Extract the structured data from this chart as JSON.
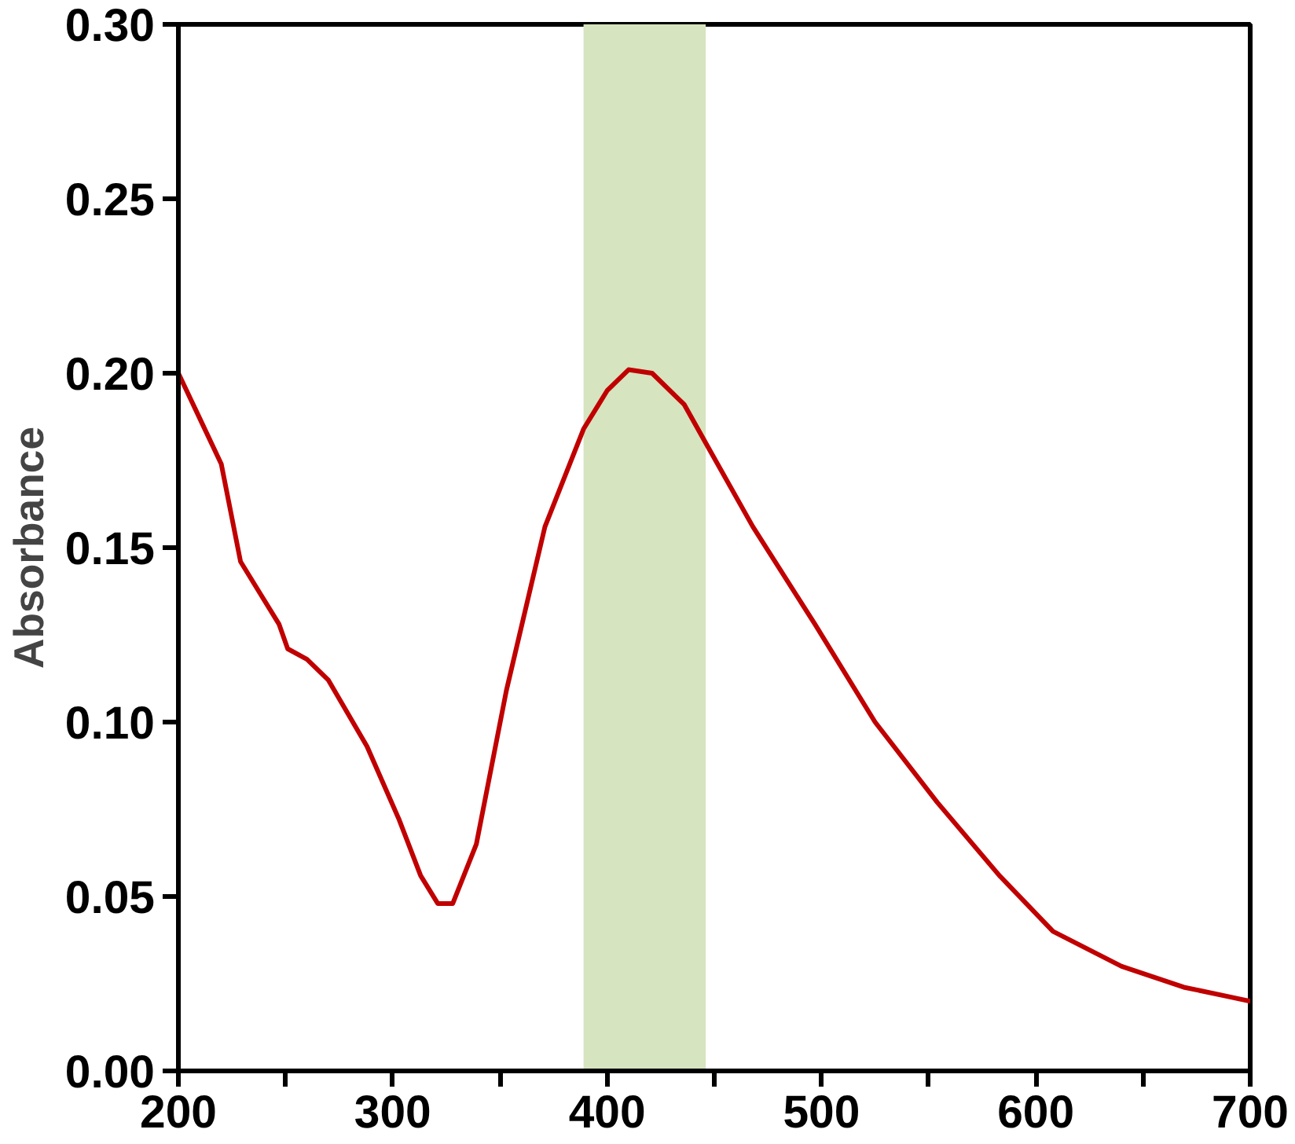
{
  "chart_data": {
    "type": "line",
    "ylabel": "Absorbance",
    "xlim": [
      200,
      700
    ],
    "ylim": [
      0,
      0.3
    ],
    "xticks": [
      200,
      {
        "value": 250,
        "label": null
      },
      300,
      {
        "value": 350,
        "label": null
      },
      400,
      {
        "value": 450,
        "label": null
      },
      500,
      {
        "value": 550,
        "label": null
      },
      600,
      {
        "value": 650,
        "label": null
      },
      700
    ],
    "yticks": [
      {
        "value": 0,
        "label": "0.00"
      },
      {
        "value": 0.05,
        "label": "0.05"
      },
      {
        "value": 0.1,
        "label": "0.10"
      },
      {
        "value": 0.15,
        "label": "0.15"
      },
      {
        "value": 0.2,
        "label": "0.20"
      },
      {
        "value": 0.25,
        "label": "0.25"
      },
      {
        "value": 0.3,
        "label": "0.30"
      }
    ],
    "grid": false,
    "marker": "none",
    "line_style": "solid",
    "bands": [
      {
        "axis": "x",
        "from": 389,
        "to": 446,
        "color": "#d6e4bf"
      }
    ],
    "series": [
      {
        "color": "#c00000",
        "x": [
          200,
          220,
          229,
          238,
          247,
          251,
          260,
          270,
          288,
          303,
          313,
          321,
          328,
          339,
          353,
          371,
          389,
          400,
          410,
          421,
          436,
          446,
          468,
          497,
          525,
          554,
          583,
          608,
          640,
          669,
          700
        ],
        "values": [
          0.2,
          0.174,
          0.146,
          0.137,
          0.128,
          0.121,
          0.118,
          0.112,
          0.093,
          0.072,
          0.056,
          0.048,
          0.048,
          0.065,
          0.109,
          0.156,
          0.184,
          0.195,
          0.201,
          0.2,
          0.191,
          0.18,
          0.156,
          0.128,
          0.1,
          0.077,
          0.056,
          0.04,
          0.03,
          0.024,
          0.02
        ]
      }
    ]
  }
}
